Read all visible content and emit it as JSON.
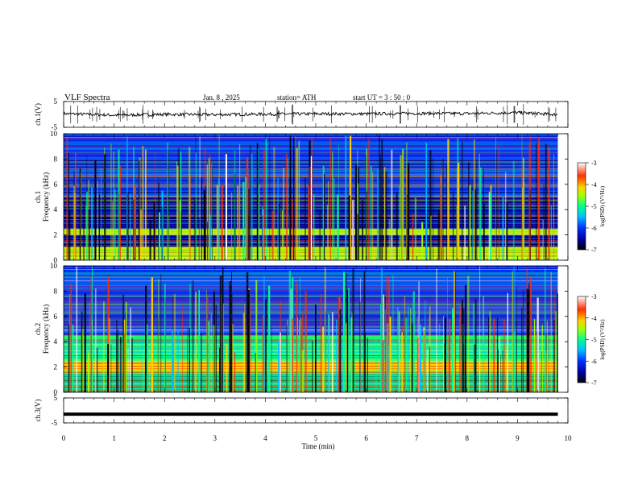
{
  "header": {
    "title": "VLF  Spectra",
    "date": "Jan.  8  , 2025",
    "station": "station= ATH",
    "start": "start  UT  =   3  : 50 : 0"
  },
  "colorbar": {
    "label": "log(PSD) (V²/Hz)",
    "ticks": [
      "-3",
      "-4",
      "-5",
      "-6",
      "-7"
    ]
  },
  "chart_data": [
    {
      "type": "line",
      "panel": "ch1-waveform",
      "ylabel": "ch.1(V)",
      "yticks": [
        "5",
        "-5"
      ],
      "ylim": [
        -5,
        5
      ],
      "x": [
        0,
        1,
        2,
        3,
        4,
        5,
        6,
        7,
        8,
        9,
        9.8
      ],
      "series": [
        {
          "values": [
            0.3,
            -0.3,
            0.0,
            -0.1,
            0.1,
            0.2,
            0.2,
            0.4,
            0.3,
            0.7,
            -0.1
          ]
        }
      ]
    },
    {
      "type": "heatmap",
      "panel": "ch1-spectrogram",
      "ylabel": "ch.1\nFrequency (kHz)",
      "yticks": [
        "0",
        "2",
        "4",
        "6",
        "8",
        "10"
      ],
      "ylim": [
        0,
        10
      ],
      "xlim": [
        0,
        9.8
      ],
      "colorscale": [
        "#000000",
        "#0000a0",
        "#0030ff",
        "#00c0ff",
        "#00ff90",
        "#a0ff00",
        "#ffd000",
        "#ff3000",
        "#ffffff"
      ],
      "value_range": [
        -7,
        -3
      ],
      "bands_khz": [
        {
          "from": 0,
          "to": 1,
          "level": "-4.5"
        },
        {
          "from": 1,
          "to": 2,
          "level": "-6.5"
        },
        {
          "from": 2,
          "to": 2.5,
          "level": "-4.5"
        },
        {
          "from": 2.5,
          "to": 5,
          "level": "-6.5"
        },
        {
          "from": 5,
          "to": 7,
          "level": "-5.8"
        },
        {
          "from": 7,
          "to": 10,
          "level": "-6.0"
        }
      ]
    },
    {
      "type": "heatmap",
      "panel": "ch2-spectrogram",
      "ylabel": "ch.2\nFrequency (kHz)",
      "yticks": [
        "0",
        "2",
        "4",
        "6",
        "8",
        "10"
      ],
      "ylim": [
        0,
        10
      ],
      "xlim": [
        0,
        9.8
      ],
      "colorscale": [
        "#000000",
        "#0000a0",
        "#0030ff",
        "#00c0ff",
        "#00ff90",
        "#a0ff00",
        "#ffd000",
        "#ff3000",
        "#ffffff"
      ],
      "value_range": [
        -7,
        -3
      ],
      "bands_khz": [
        {
          "from": 0,
          "to": 1.5,
          "level": "-5.0"
        },
        {
          "from": 1.5,
          "to": 2.5,
          "level": "-4.2"
        },
        {
          "from": 2.5,
          "to": 4.5,
          "level": "-5.0"
        },
        {
          "from": 4.5,
          "to": 6,
          "level": "-5.8"
        },
        {
          "from": 6,
          "to": 10,
          "level": "-6.2"
        }
      ]
    },
    {
      "type": "line",
      "panel": "ch3-waveform",
      "ylabel": "ch.3(V)",
      "yticks": [
        "5",
        "-5"
      ],
      "ylim": [
        -5,
        5
      ],
      "xlabel": "Time  (min)",
      "xticks": [
        "0",
        "1",
        "2",
        "3",
        "4",
        "5",
        "6",
        "7",
        "8",
        "9",
        "10"
      ],
      "xlim": [
        0,
        10
      ],
      "x": [
        0,
        9.8
      ],
      "series": [
        {
          "values": [
            -1.5,
            -1.5
          ]
        }
      ]
    }
  ]
}
